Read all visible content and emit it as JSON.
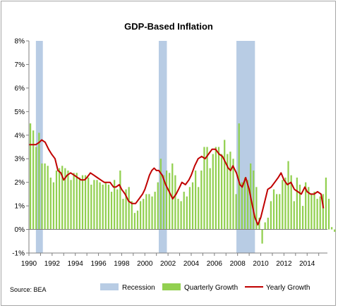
{
  "chart_data": {
    "type": "bar",
    "title": "GDP-Based Inflation",
    "source": "Source: BEA",
    "xlabel": "",
    "ylabel": "",
    "xlim": [
      1990,
      2015.75
    ],
    "ylim": [
      -1,
      8
    ],
    "y_ticks": [
      -1,
      0,
      1,
      2,
      3,
      4,
      5,
      6,
      7,
      8
    ],
    "y_tick_labels": [
      "-1%",
      "0%",
      "1%",
      "2%",
      "3%",
      "4%",
      "5%",
      "6%",
      "7%",
      "8%"
    ],
    "x_tick_labels": [
      "1990",
      "1992",
      "1994",
      "1996",
      "1998",
      "2000",
      "2002",
      "2004",
      "2006",
      "2008",
      "2010",
      "2012",
      "2014"
    ],
    "grid": false,
    "legend": "bottom",
    "colors": {
      "recession": "#b8cce4",
      "quarterly": "#92d050",
      "yearly": "#c00000"
    },
    "recessions": [
      {
        "start": 1990.6,
        "end": 1991.2
      },
      {
        "start": 2001.2,
        "end": 2001.9
      },
      {
        "start": 2007.9,
        "end": 2009.5
      }
    ],
    "quarter_start": 1990.0,
    "quarterly_growth": [
      4.5,
      4.2,
      3.5,
      4.1,
      2.8,
      2.8,
      2.7,
      2.2,
      2.0,
      2.5,
      2.6,
      2.7,
      2.6,
      2.5,
      2.1,
      2.4,
      2.4,
      2.2,
      2.3,
      2.3,
      2.2,
      1.9,
      2.1,
      2.1,
      2.0,
      1.9,
      2.0,
      1.9,
      1.6,
      2.1,
      1.7,
      2.5,
      1.3,
      1.7,
      1.8,
      1.2,
      0.7,
      0.8,
      1.2,
      1.3,
      1.5,
      1.5,
      1.4,
      1.6,
      2.0,
      3.0,
      2.3,
      2.5,
      2.4,
      2.8,
      2.3,
      1.3,
      1.2,
      1.6,
      1.4,
      1.8,
      2.0,
      2.5,
      1.8,
      2.5,
      3.5,
      3.5,
      2.6,
      3.2,
      3.5,
      3.5,
      3.2,
      3.8,
      3.2,
      3.3,
      3.0,
      1.5,
      4.5,
      2.0,
      2.2,
      2.1,
      2.8,
      2.5,
      1.8,
      0.5,
      -0.6,
      0.3,
      0.5,
      1.2,
      1.7,
      1.5,
      1.5,
      2.1,
      2.2,
      2.9,
      2.3,
      1.2,
      2.2,
      1.9,
      1.0,
      2.0,
      1.8,
      1.5,
      1.6,
      1.3,
      1.4,
      1.5,
      2.2,
      1.3,
      0.1,
      -0.1
    ],
    "yearly_growth_x": [
      1990.0,
      1990.3,
      1990.6,
      1990.9,
      1991.1,
      1991.4,
      1991.7,
      1991.95,
      1992.25,
      1992.5,
      1992.75,
      1993.0,
      1993.3,
      1993.6,
      1993.9,
      1994.2,
      1994.5,
      1994.8,
      1995.0,
      1995.3,
      1995.6,
      1995.9,
      1996.2,
      1996.5,
      1996.75,
      1997.0,
      1997.3,
      1997.5,
      1997.8,
      1998.0,
      1998.3,
      1998.6,
      1998.9,
      1999.2,
      1999.5,
      1999.8,
      2000.0,
      2000.2,
      2000.4,
      2000.6,
      2000.8,
      2001.0,
      2001.2,
      2001.5,
      2001.8,
      2002.1,
      2002.4,
      2002.7,
      2003.0,
      2003.2,
      2003.5,
      2003.8,
      2004.0,
      2004.3,
      2004.6,
      2004.9,
      2005.2,
      2005.5,
      2005.8,
      2006.1,
      2006.4,
      2006.7,
      2007.0,
      2007.2,
      2007.4,
      2007.6,
      2007.9,
      2008.2,
      2008.4,
      2008.7,
      2009.0,
      2009.2,
      2009.5,
      2009.75,
      2010.0,
      2010.3,
      2010.6,
      2010.9,
      2011.2,
      2011.5,
      2011.75,
      2012.0,
      2012.3,
      2012.6,
      2012.9,
      2013.2,
      2013.5,
      2013.8,
      2014.0,
      2014.3,
      2014.6,
      2014.9,
      2015.2,
      2015.4
    ],
    "yearly_growth": [
      3.6,
      3.6,
      3.6,
      3.7,
      3.8,
      3.7,
      3.4,
      3.2,
      3.0,
      2.5,
      2.4,
      2.1,
      2.3,
      2.4,
      2.3,
      2.2,
      2.1,
      2.1,
      2.2,
      2.4,
      2.3,
      2.2,
      2.1,
      2.0,
      2.0,
      2.0,
      1.8,
      1.8,
      1.9,
      1.7,
      1.5,
      1.2,
      1.1,
      1.1,
      1.3,
      1.5,
      1.7,
      2.0,
      2.3,
      2.5,
      2.6,
      2.5,
      2.5,
      2.3,
      1.9,
      1.6,
      1.3,
      1.5,
      1.8,
      2.0,
      1.9,
      2.1,
      2.3,
      2.7,
      3.0,
      3.1,
      3.0,
      3.2,
      3.4,
      3.4,
      3.2,
      3.1,
      2.8,
      2.6,
      2.5,
      2.7,
      2.4,
      1.9,
      1.8,
      2.2,
      1.7,
      1.2,
      0.5,
      0.2,
      0.5,
      1.1,
      1.7,
      1.8,
      2.0,
      2.2,
      2.4,
      2.1,
      1.9,
      2.0,
      1.7,
      1.6,
      1.5,
      1.8,
      1.6,
      1.5,
      1.5,
      1.6,
      1.5,
      0.9
    ],
    "legend_entries": [
      "Recession",
      "Quarterly Growth",
      "Yearly Growth"
    ]
  }
}
